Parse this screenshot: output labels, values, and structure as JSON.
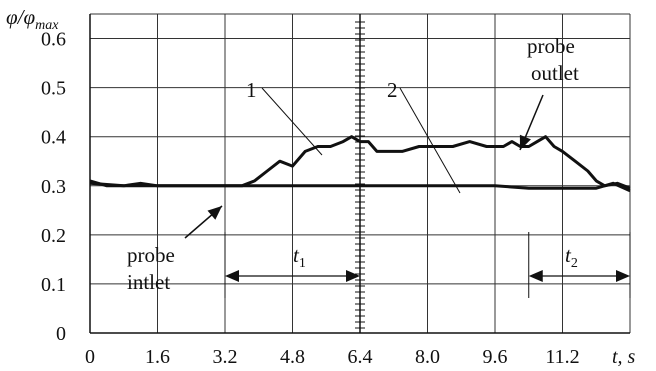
{
  "chart_data": {
    "type": "line",
    "title": "",
    "xlabel": "t, s",
    "ylabel": "φ/φmax",
    "x_ticks": [
      "0",
      "1.6",
      "3.2",
      "4.8",
      "6.4",
      "8.0",
      "9.6",
      "11.2"
    ],
    "y_ticks": [
      "0",
      "0.1",
      "0.2",
      "0.3",
      "0.4",
      "0.5",
      "0.6"
    ],
    "xlim": [
      0,
      12.8
    ],
    "ylim": [
      0,
      0.65
    ],
    "grid": true,
    "series": [
      {
        "name": "1",
        "x": [
          0,
          0.4,
          0.8,
          1.2,
          1.6,
          2.0,
          2.4,
          2.8,
          3.2,
          3.6,
          3.9,
          4.2,
          4.5,
          4.8,
          5.1,
          5.4,
          5.7,
          6.0,
          6.2,
          6.4,
          6.6,
          6.8,
          7.0,
          7.4,
          7.8,
          8.2,
          8.6,
          9.0,
          9.4,
          9.8,
          10.0,
          10.2,
          10.4,
          10.6,
          10.8,
          11.0,
          11.2,
          11.5,
          11.8,
          12.0,
          12.2,
          12.5,
          12.8
        ],
        "y": [
          0.31,
          0.3,
          0.3,
          0.305,
          0.3,
          0.3,
          0.3,
          0.3,
          0.3,
          0.3,
          0.31,
          0.33,
          0.35,
          0.34,
          0.37,
          0.38,
          0.38,
          0.39,
          0.4,
          0.39,
          0.39,
          0.37,
          0.37,
          0.37,
          0.38,
          0.38,
          0.38,
          0.39,
          0.38,
          0.38,
          0.39,
          0.38,
          0.38,
          0.39,
          0.4,
          0.38,
          0.37,
          0.35,
          0.33,
          0.31,
          0.3,
          0.305,
          0.295
        ]
      },
      {
        "name": "2",
        "x": [
          0,
          0.8,
          1.6,
          2.4,
          3.2,
          4.0,
          4.8,
          5.6,
          6.4,
          7.2,
          8.0,
          8.8,
          9.6,
          10.4,
          11.2,
          12.0,
          12.4,
          12.8
        ],
        "y": [
          0.305,
          0.3,
          0.3,
          0.3,
          0.3,
          0.3,
          0.3,
          0.3,
          0.3,
          0.3,
          0.3,
          0.3,
          0.3,
          0.295,
          0.295,
          0.295,
          0.305,
          0.29
        ]
      }
    ],
    "annotations": [
      {
        "text": "1"
      },
      {
        "text": "2"
      },
      {
        "text": "probe"
      },
      {
        "text": "outlet"
      },
      {
        "text": "probe"
      },
      {
        "text": "intlet"
      },
      {
        "text": "t1"
      },
      {
        "text": "t2"
      }
    ],
    "interval_t1": [
      3.2,
      6.4
    ],
    "interval_t2": [
      10.4,
      12.8
    ]
  }
}
